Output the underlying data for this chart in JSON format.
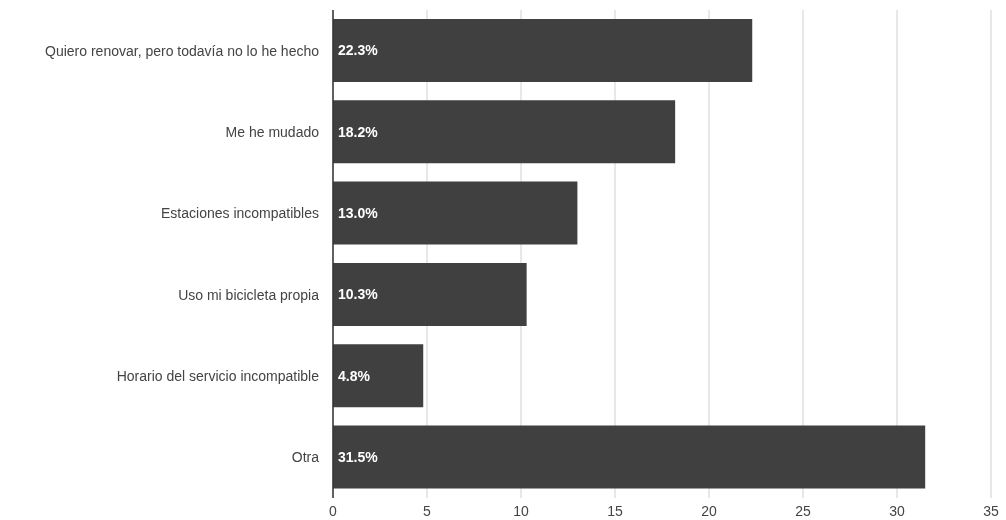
{
  "chart_data": {
    "type": "bar",
    "orientation": "horizontal",
    "categories": [
      "Quiero renovar, pero todavía no lo he hecho",
      "Me he mudado",
      "Estaciones incompatibles",
      "Uso mi bicicleta propia",
      "Horario del servicio incompatible",
      "Otra"
    ],
    "values": [
      22.3,
      18.2,
      13.0,
      10.3,
      4.8,
      31.5
    ],
    "value_labels": [
      "22.3%",
      "18.2%",
      "13.0%",
      "10.3%",
      "4.8%",
      "31.5%"
    ],
    "color": "#404040",
    "xlim": [
      0,
      35
    ],
    "xticks": [
      0,
      5,
      10,
      15,
      20,
      25,
      30,
      35
    ],
    "grid": "x",
    "legend": false
  }
}
